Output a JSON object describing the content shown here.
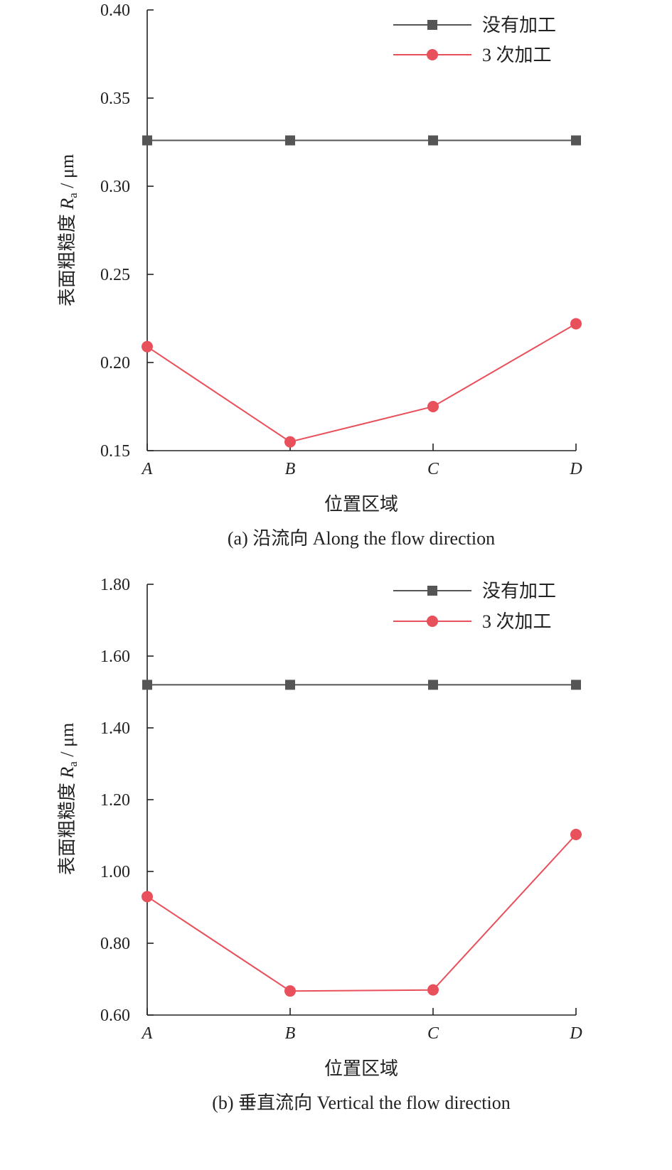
{
  "chart_data": [
    {
      "type": "line",
      "caption": "(a) 沿流向 Along the flow direction",
      "xlabel": "位置区域",
      "ylabel_main": "表面粗糙度 ",
      "ylabel_symbol": "R",
      "ylabel_sub": "a",
      "ylabel_unit": " / μm",
      "categories": [
        "A",
        "B",
        "C",
        "D"
      ],
      "ylim": [
        0.15,
        0.4
      ],
      "yticks": [
        "0.15",
        "0.20",
        "0.25",
        "0.30",
        "0.35",
        "0.40"
      ],
      "legend_position": "top-right",
      "series": [
        {
          "name": "没有加工",
          "marker": "square",
          "color": "#555555",
          "values": [
            0.326,
            0.326,
            0.326,
            0.326
          ]
        },
        {
          "name": "3 次加工",
          "marker": "circle",
          "color": "#e8505b",
          "values": [
            0.209,
            0.155,
            0.175,
            0.222
          ]
        }
      ]
    },
    {
      "type": "line",
      "caption": "(b) 垂直流向 Vertical the flow direction",
      "xlabel": "位置区域",
      "ylabel_main": "表面粗糙度 ",
      "ylabel_symbol": "R",
      "ylabel_sub": "a",
      "ylabel_unit": " / μm",
      "categories": [
        "A",
        "B",
        "C",
        "D"
      ],
      "ylim": [
        0.6,
        1.8
      ],
      "yticks": [
        "0.60",
        "0.80",
        "1.00",
        "1.20",
        "1.40",
        "1.60",
        "1.80"
      ],
      "legend_position": "top-right",
      "series": [
        {
          "name": "没有加工",
          "marker": "square",
          "color": "#555555",
          "values": [
            1.52,
            1.52,
            1.52,
            1.52
          ]
        },
        {
          "name": "3 次加工",
          "marker": "circle",
          "color": "#e8505b",
          "values": [
            0.93,
            0.667,
            0.67,
            1.103
          ]
        }
      ]
    }
  ]
}
